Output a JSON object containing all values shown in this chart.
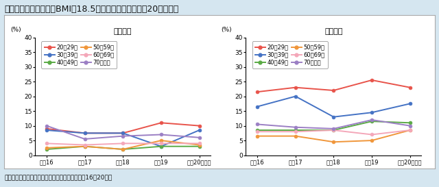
{
  "title": "痩身（低体重）の者（BMI＜18.5）の割合の年次推移（20歳以上）",
  "source": "資料：厚生労働省「国民健康・栄養調査」（平成16～20年）",
  "x_labels": [
    "平成16",
    "平成17",
    "平成18",
    "平成19",
    "平成20（年）"
  ],
  "x_vals": [
    0,
    1,
    2,
    3,
    4
  ],
  "male_title": "〈男性〉",
  "female_title": "〈女性〉",
  "age_groups": [
    "20～29歳",
    "30～39歳",
    "40～49歳",
    "50～59歳",
    "60～69歳",
    "70歳以上"
  ],
  "colors": [
    "#e8534a",
    "#4472c4",
    "#5aaa45",
    "#f0963a",
    "#f4a7b9",
    "#9b7fc4"
  ],
  "male_data": {
    "20～29歳": [
      9.0,
      7.5,
      7.5,
      11.0,
      10.0
    ],
    "30～39歳": [
      8.5,
      7.5,
      7.5,
      3.0,
      8.5
    ],
    "40～49歳": [
      2.0,
      3.0,
      2.0,
      3.0,
      3.0
    ],
    "50～59歳": [
      2.5,
      3.0,
      2.0,
      5.0,
      3.5
    ],
    "60～69歳": [
      4.0,
      3.5,
      4.0,
      4.0,
      4.0
    ],
    "70歳以上": [
      10.0,
      5.5,
      6.5,
      7.0,
      6.0
    ]
  },
  "female_data": {
    "20～29歳": [
      21.5,
      23.0,
      22.0,
      25.5,
      23.0
    ],
    "30～39歳": [
      16.5,
      20.0,
      13.0,
      14.5,
      17.5
    ],
    "40～49歳": [
      8.5,
      8.5,
      8.5,
      11.5,
      11.0
    ],
    "50～59歳": [
      6.5,
      6.5,
      4.5,
      5.0,
      8.5
    ],
    "60～69歳": [
      8.0,
      8.0,
      8.5,
      7.0,
      8.5
    ],
    "70歳以上": [
      10.5,
      9.5,
      9.0,
      12.0,
      10.0
    ]
  },
  "ylim": [
    0,
    40
  ],
  "yticks": [
    0,
    5,
    10,
    15,
    20,
    25,
    30,
    35,
    40
  ],
  "ylabel": "(%)",
  "bg_color": "#d5e6f0",
  "panel_color": "#ffffff"
}
